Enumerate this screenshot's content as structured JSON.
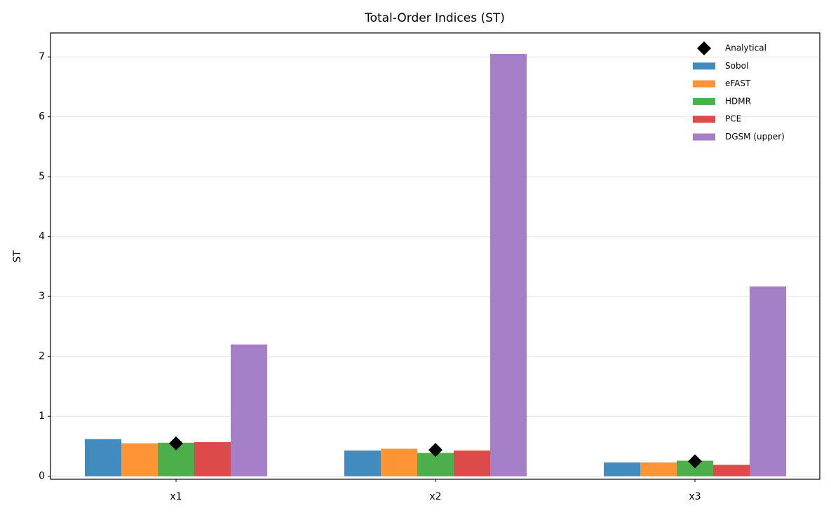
{
  "chart_data": {
    "type": "bar",
    "title": "Total-Order Indices (ST)",
    "y_label": "ST",
    "categories": [
      "x1",
      "x2",
      "x3"
    ],
    "series": [
      {
        "name": "Sobol",
        "color": "#428bbf",
        "values": [
          0.62,
          0.43,
          0.23
        ]
      },
      {
        "name": "eFAST",
        "color": "#fe9436",
        "values": [
          0.55,
          0.46,
          0.23
        ]
      },
      {
        "name": "HDMR",
        "color": "#4daf4a",
        "values": [
          0.56,
          0.39,
          0.26
        ]
      },
      {
        "name": "PCE",
        "color": "#dc4a4a",
        "values": [
          0.57,
          0.43,
          0.19
        ]
      },
      {
        "name": "DGSM (upper)",
        "color": "#a57fc7",
        "values": [
          2.2,
          7.05,
          3.17
        ]
      }
    ],
    "analytical": {
      "name": "Analytical",
      "color": "#000000",
      "marker": "diamond",
      "values": [
        0.55,
        0.44,
        0.25
      ]
    },
    "ylim": [
      -0.05,
      7.4
    ],
    "yticks": [
      0,
      1,
      2,
      3,
      4,
      5,
      6,
      7
    ],
    "grid": true,
    "legend": "upper right"
  }
}
